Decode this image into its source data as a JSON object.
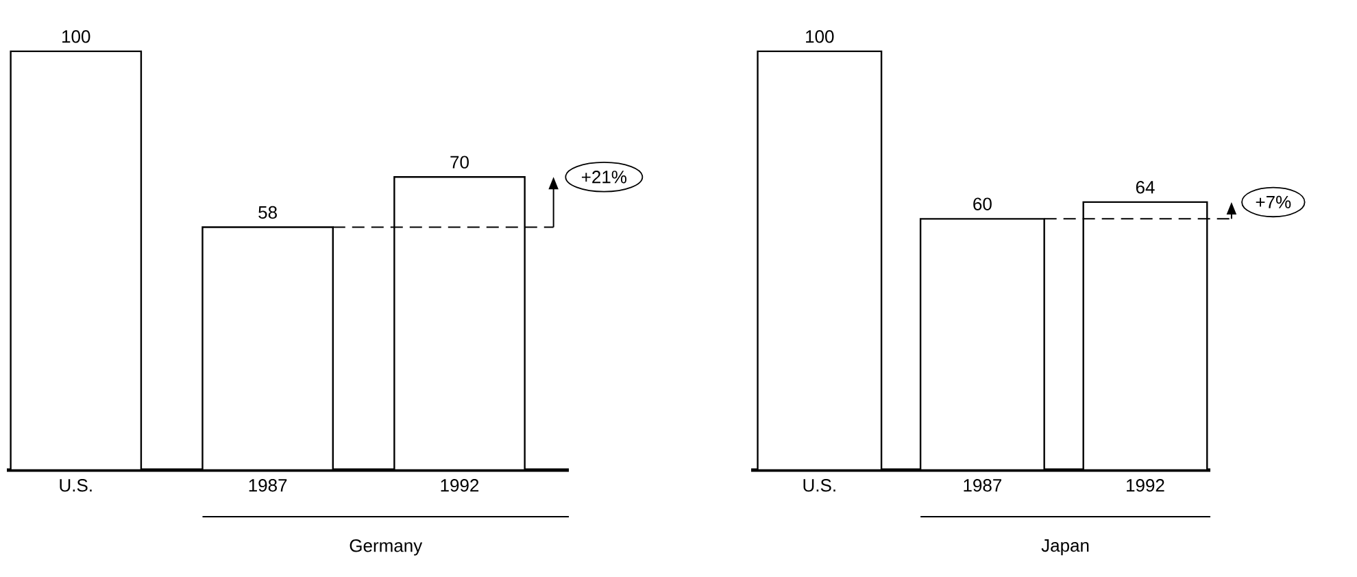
{
  "chart_data": [
    {
      "type": "bar",
      "categories": [
        "U.S.",
        "1987",
        "1992"
      ],
      "values": [
        100,
        58,
        70
      ],
      "color": "#ffffff",
      "data_labels": true,
      "xlabel": "Germany",
      "ref_lines": [
        {
          "axis": "y",
          "value": 58,
          "line_style": "dashed"
        }
      ],
      "annotations": [
        "+21%"
      ]
    },
    {
      "type": "bar",
      "categories": [
        "U.S.",
        "1987",
        "1992"
      ],
      "values": [
        100,
        60,
        64
      ],
      "color": "#ffffff",
      "data_labels": true,
      "xlabel": "Japan",
      "ref_lines": [
        {
          "axis": "y",
          "value": 60,
          "line_style": "dashed"
        }
      ],
      "annotations": [
        "+7%"
      ]
    }
  ]
}
